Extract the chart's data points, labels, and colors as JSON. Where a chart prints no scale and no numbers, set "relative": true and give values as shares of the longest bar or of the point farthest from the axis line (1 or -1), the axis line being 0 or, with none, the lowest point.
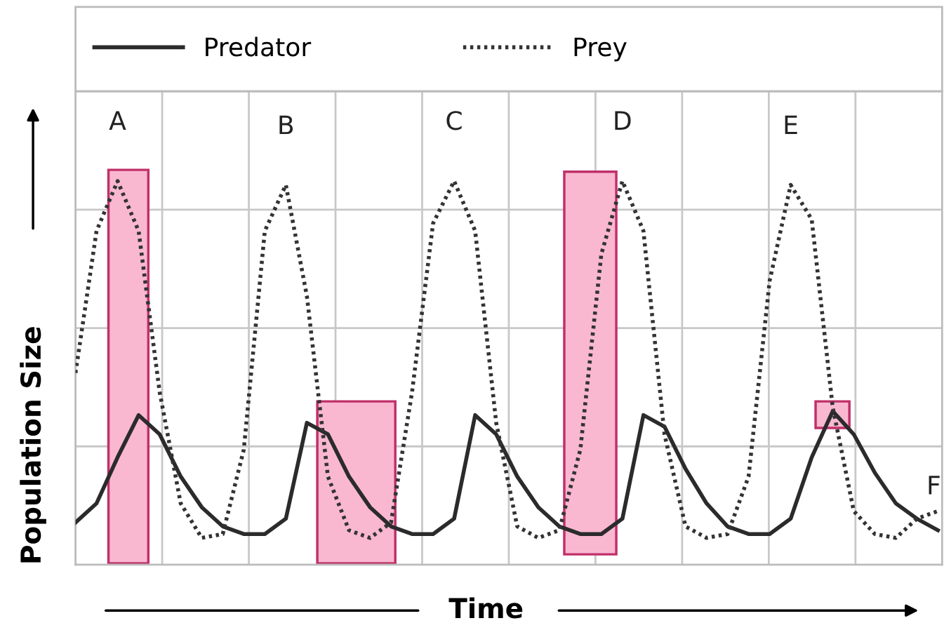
{
  "chart_data": {
    "type": "line",
    "relative": true,
    "xlabel": "Time",
    "ylabel": "Population Size",
    "categories": [
      null,
      null,
      null,
      null,
      null,
      null,
      null,
      null,
      null,
      null,
      null,
      null,
      null,
      null,
      null,
      null,
      null,
      null,
      null,
      null,
      null,
      null,
      null,
      null,
      null,
      null,
      null,
      null,
      null,
      null,
      null,
      null,
      null,
      null,
      null,
      null,
      null,
      null,
      null,
      null,
      null,
      null
    ],
    "series": [
      {
        "name": "Predator",
        "color": "#2b2b2b",
        "line_style": "solid",
        "values": [
          0.11,
          0.16,
          0.28,
          0.39,
          0.34,
          0.23,
          0.15,
          0.1,
          0.08,
          0.08,
          0.12,
          0.37,
          0.34,
          0.23,
          0.15,
          0.1,
          0.08,
          0.08,
          0.12,
          0.39,
          0.34,
          0.23,
          0.15,
          0.1,
          0.08,
          0.08,
          0.12,
          0.39,
          0.36,
          0.25,
          0.16,
          0.1,
          0.08,
          0.08,
          0.12,
          0.28,
          0.4,
          0.34,
          0.24,
          0.16,
          0.12,
          0.09
        ]
      },
      {
        "name": "Prey",
        "color": "#333333",
        "line_style": "dotted",
        "values": [
          0.5,
          0.87,
          1.0,
          0.87,
          0.45,
          0.16,
          0.07,
          0.08,
          0.3,
          0.87,
          0.99,
          0.7,
          0.23,
          0.09,
          0.07,
          0.11,
          0.45,
          0.89,
          1.0,
          0.87,
          0.37,
          0.1,
          0.07,
          0.09,
          0.3,
          0.81,
          1.0,
          0.87,
          0.34,
          0.1,
          0.07,
          0.08,
          0.23,
          0.74,
          0.99,
          0.9,
          0.41,
          0.14,
          0.08,
          0.07,
          0.12,
          0.14
        ]
      }
    ],
    "annotations": [
      "A",
      "B",
      "C",
      "D",
      "E",
      "F"
    ],
    "grid": true,
    "legend": "top"
  }
}
